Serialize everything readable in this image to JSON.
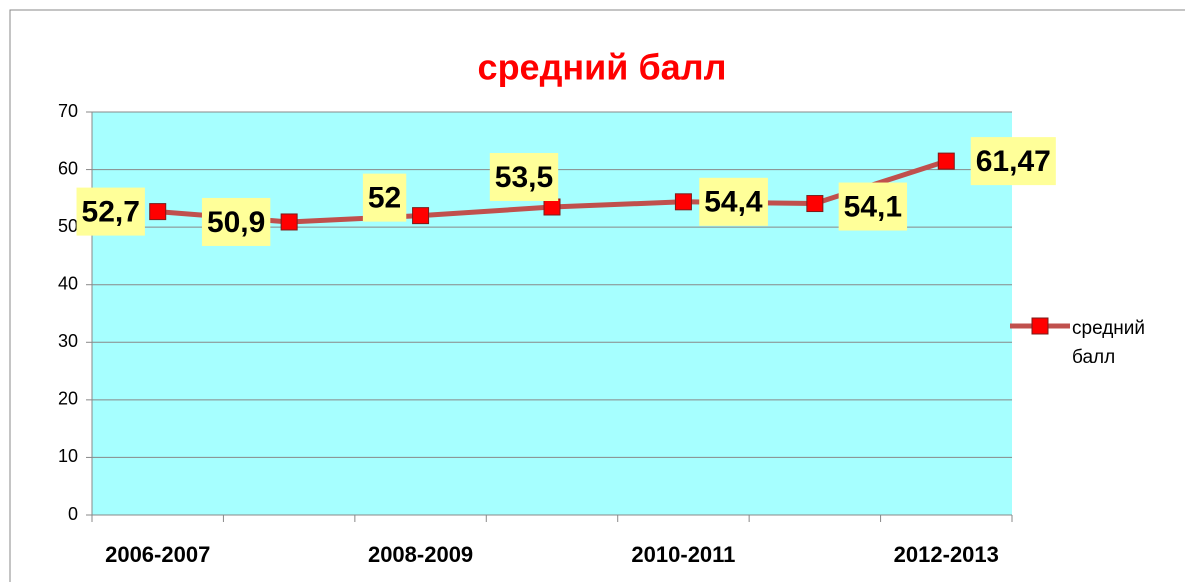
{
  "chart_data": {
    "type": "line",
    "title": "средний балл",
    "categories": [
      "2006-2007",
      null,
      "2008-2009",
      null,
      "2010-2011",
      null,
      "2012-2013"
    ],
    "series": [
      {
        "name": "средний балл",
        "color": "#c0504d",
        "marker_color": "#ff0000",
        "values": [
          52.7,
          50.9,
          52,
          53.5,
          54.4,
          54.1,
          61.47
        ],
        "value_labels": [
          "52,7",
          "50,9",
          "52",
          "53,5",
          "54,4",
          "54,1",
          "61,47"
        ]
      }
    ],
    "ylim": [
      0,
      70
    ],
    "yticks": [
      0,
      10,
      20,
      30,
      40,
      50,
      60,
      70
    ],
    "grid": true,
    "legend": "right"
  }
}
